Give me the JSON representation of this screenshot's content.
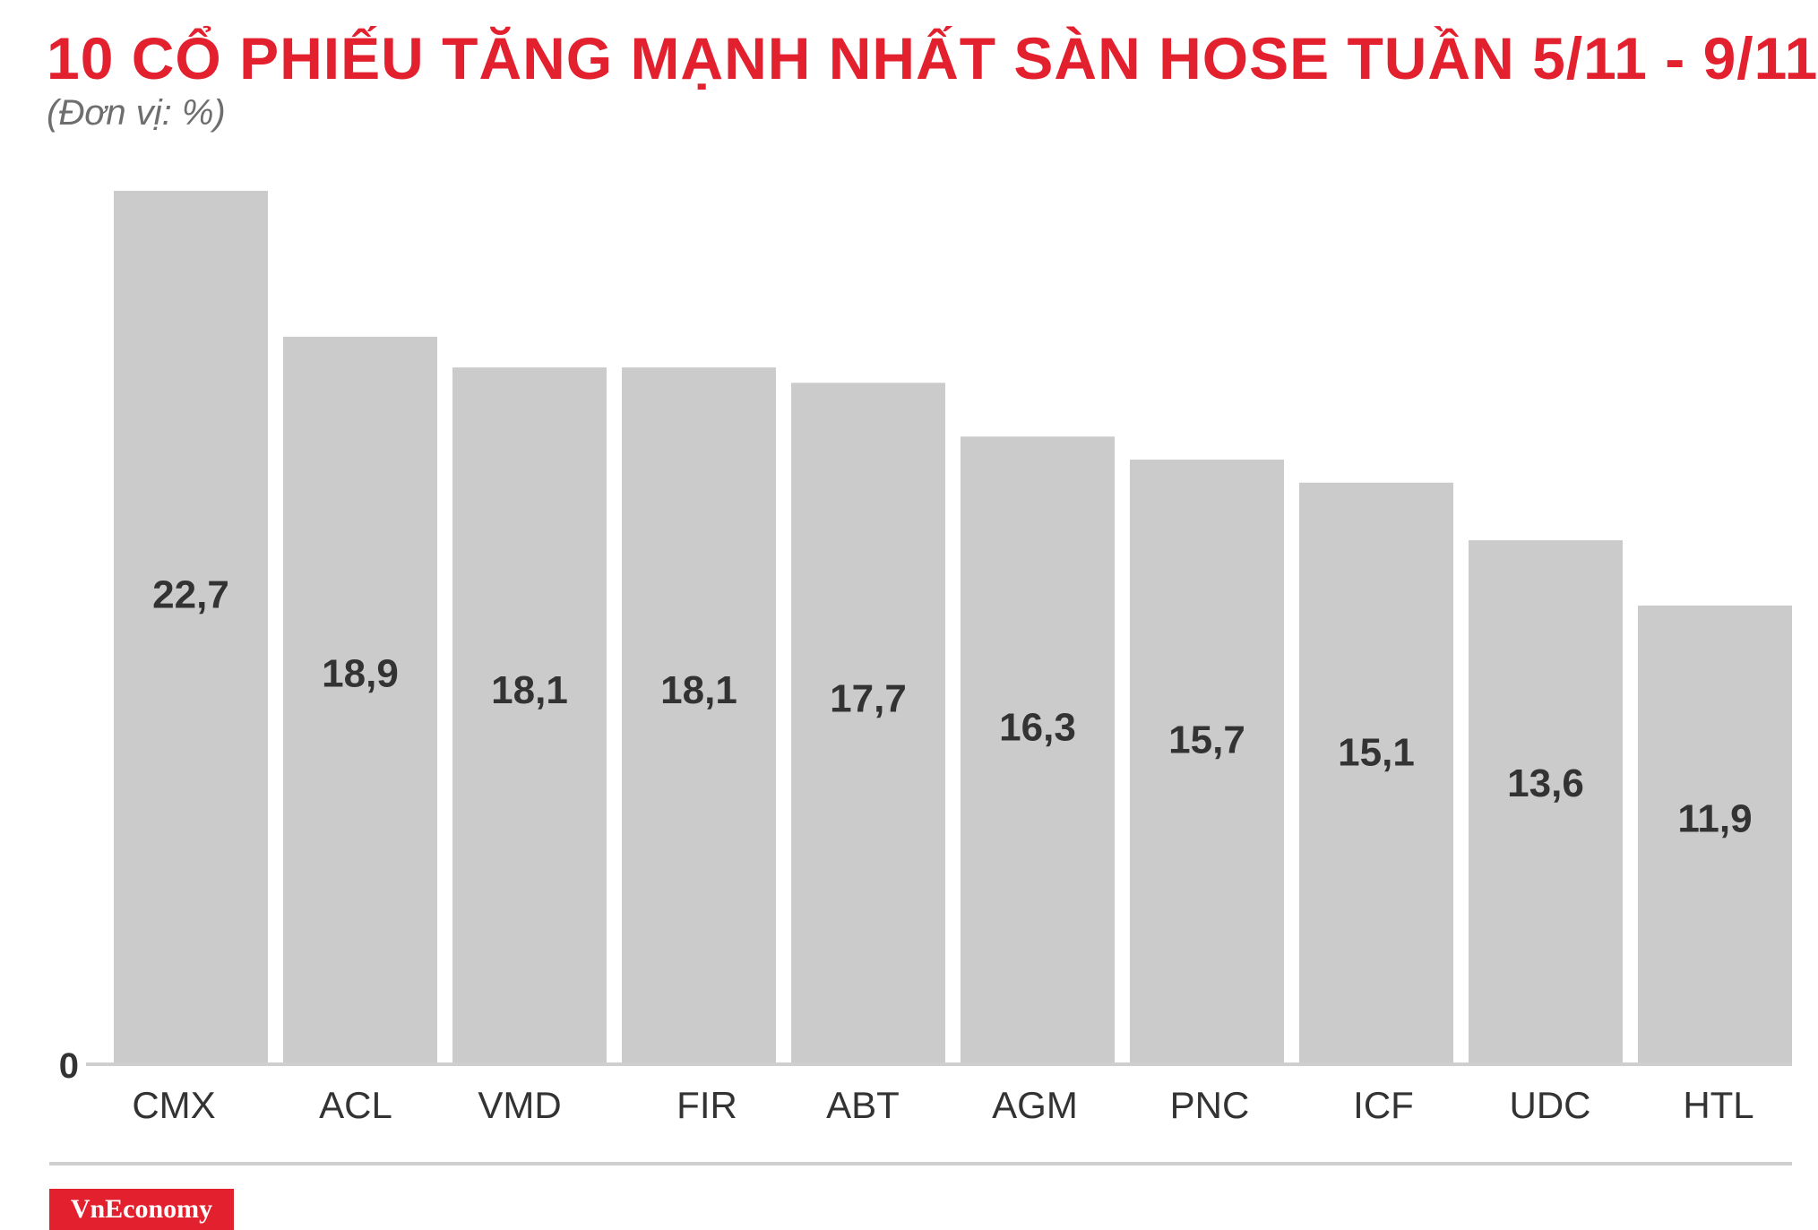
{
  "header": {
    "title": "10 CỔ PHIẾU TĂNG MẠNH NHẤT SÀN HOSE TUẦN 5/11 - 9/11",
    "unit": "(Đơn vị: %)"
  },
  "brand": {
    "logo_text": "VnEconomy"
  },
  "colors": {
    "title": "#e3202e",
    "bar": "#cccbcc",
    "label": "#333333",
    "axis": "#cfcfcf",
    "logo_bg": "#e3202e"
  },
  "chart_data": {
    "type": "bar",
    "title": "10 CỔ PHIẾU TĂNG MẠNH NHẤT SÀN HOSE TUẦN 5/11 - 9/11",
    "subtitle": "(Đơn vị: %)",
    "categories": [
      "CMX",
      "ACL",
      "VMD",
      "FIR",
      "ABT",
      "AGM",
      "PNC",
      "ICF",
      "UDC",
      "HTL"
    ],
    "values": [
      22.7,
      18.9,
      18.1,
      18.1,
      17.7,
      16.3,
      15.7,
      15.1,
      13.6,
      11.9
    ],
    "value_labels": [
      "22,7",
      "18,9",
      "18,1",
      "18,1",
      "17,7",
      "16,3",
      "15,7",
      "15,1",
      "13,6",
      "11,9"
    ],
    "y_tick_labels": [
      "0"
    ],
    "xlabel": "",
    "ylabel": "",
    "ylim": [
      0,
      22.7
    ],
    "grid": false,
    "legend": "none"
  }
}
